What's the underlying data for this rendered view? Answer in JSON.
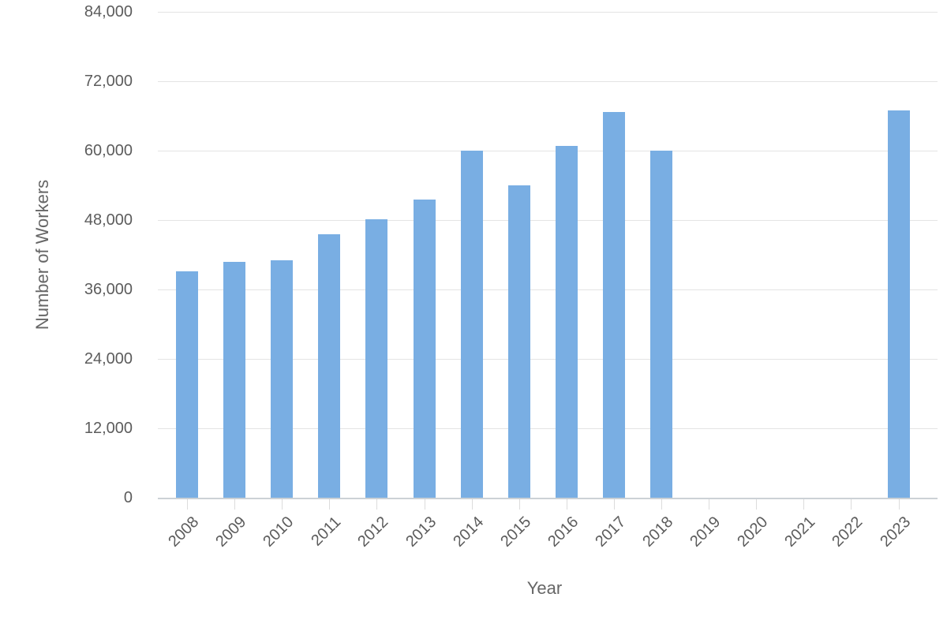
{
  "chart_data": {
    "type": "bar",
    "title": "",
    "xlabel": "Year",
    "ylabel": "Number of Workers",
    "categories": [
      "2008",
      "2009",
      "2010",
      "2011",
      "2012",
      "2013",
      "2014",
      "2015",
      "2016",
      "2017",
      "2018",
      "2019",
      "2020",
      "2021",
      "2022",
      "2023"
    ],
    "values": [
      39200,
      40800,
      41100,
      45600,
      48100,
      51500,
      60000,
      54000,
      60800,
      66700,
      60000,
      0,
      0,
      0,
      0,
      67000
    ],
    "ylim": [
      0,
      84000
    ],
    "yticks": [
      {
        "value": 0,
        "label": "0"
      },
      {
        "value": 12000,
        "label": "12,000"
      },
      {
        "value": 24000,
        "label": "24,000"
      },
      {
        "value": 36000,
        "label": "36,000"
      },
      {
        "value": 48000,
        "label": "48,000"
      },
      {
        "value": 60000,
        "label": "60,000"
      },
      {
        "value": 72000,
        "label": "72,000"
      },
      {
        "value": 84000,
        "label": "84,000"
      }
    ],
    "grid": "horizontal-only",
    "legend": "none",
    "x_tick_rotation": -45,
    "bar_color": "#79aee3"
  },
  "colors": {
    "background": "#ffffff",
    "bar": "#79aee3",
    "gridline": "#e4e4e4",
    "axis_line": "#ccd1d6",
    "tick_text": "#5c5c5c",
    "axis_title_text": "#666666"
  }
}
